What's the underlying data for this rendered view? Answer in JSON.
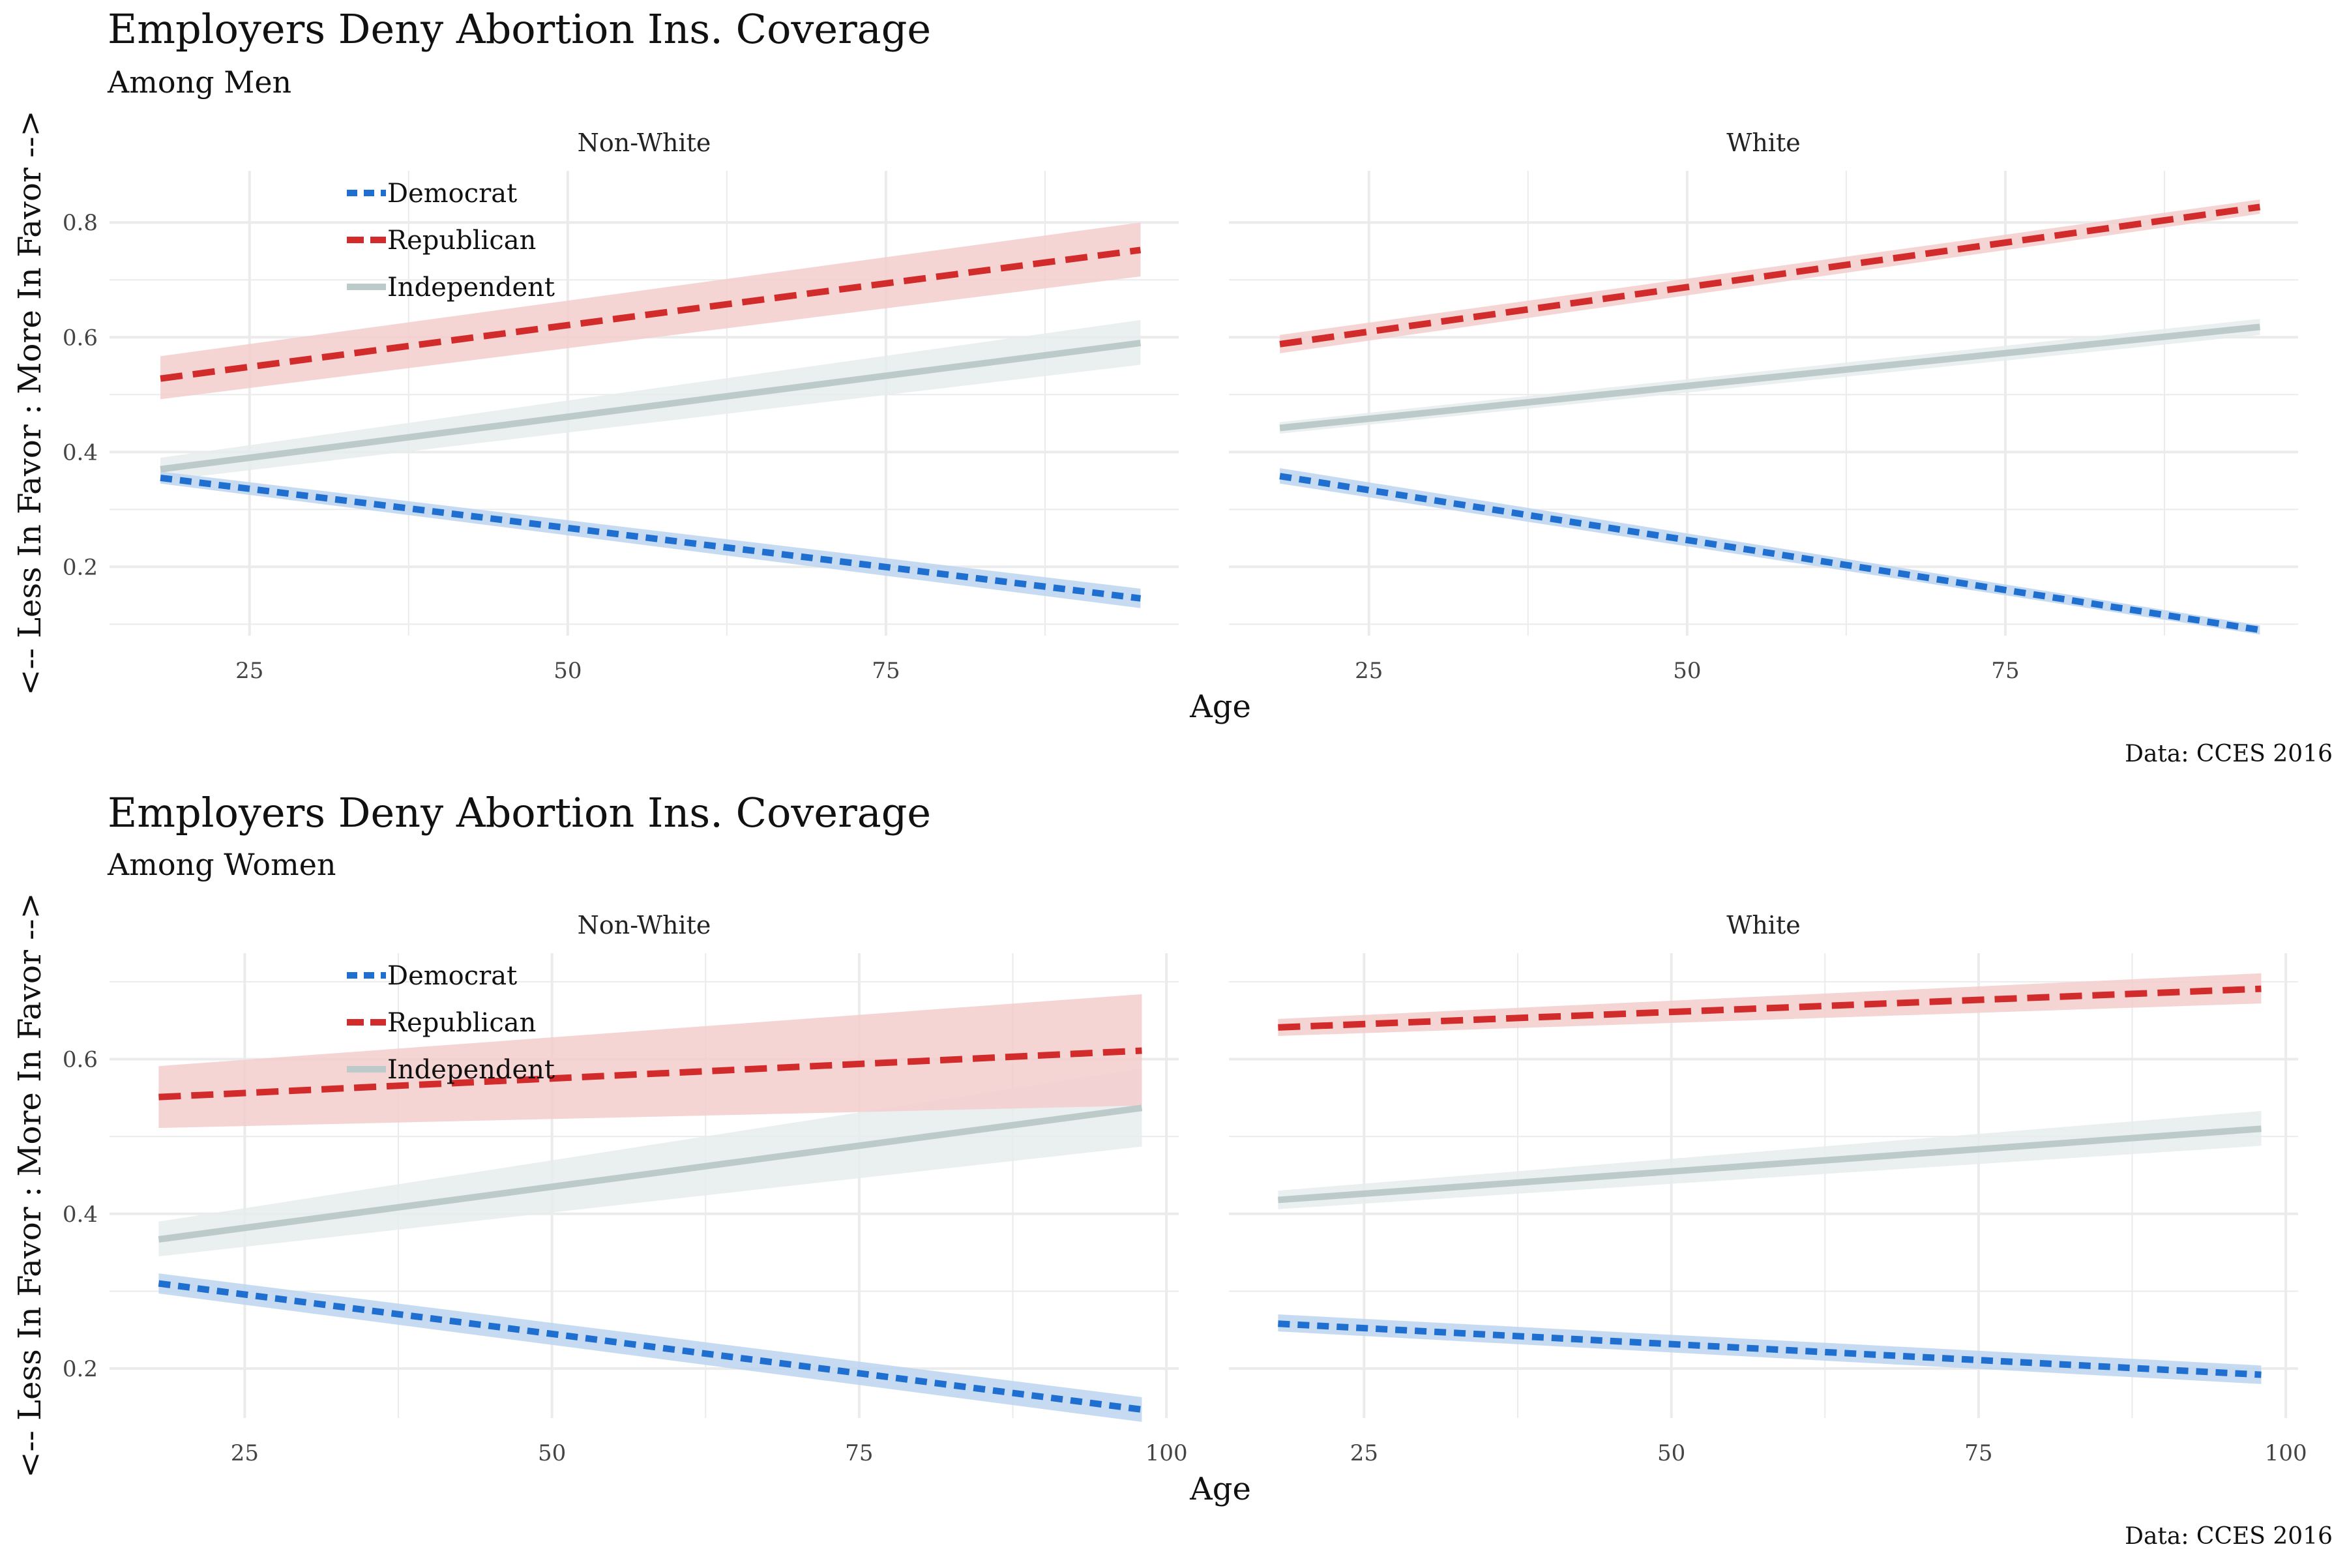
{
  "palette": {
    "Democrat": "#1f6fd1",
    "Republican": "#d22b2b",
    "Independent": "#bccaca",
    "Democrat_band": "#bcd5ef",
    "Republican_band": "#f3cccc",
    "Independent_band": "#e6ecec",
    "grid": "#ebebeb"
  },
  "chart_data": [
    {
      "type": "line",
      "title": "Employers Deny Abortion Ins. Coverage",
      "subtitle": "Among Men",
      "xlabel": "Age",
      "ylabel": "<-- Less In Favor : More In Favor -->",
      "caption": "Data: CCES 2016",
      "legend": {
        "placement": "top-left-inside-first-panel",
        "entries": [
          "Democrat",
          "Republican",
          "Independent"
        ]
      },
      "ylim": [
        0.08,
        0.89
      ],
      "yticks": [
        0.2,
        0.4,
        0.6,
        0.8
      ],
      "yticklabels": [
        "0.2",
        "0.4",
        "0.6",
        "0.8"
      ],
      "grid": true,
      "panels": [
        {
          "strip": "Non-White",
          "xlim": [
            14,
            98
          ],
          "xticks": [
            25,
            50,
            75
          ],
          "xticklabels": [
            "25",
            "50",
            "75"
          ],
          "series": [
            {
              "name": "Democrat",
              "x": [
                18,
                95
              ],
              "y": [
                0.355,
                0.145
              ],
              "lower": [
                0.345,
                0.128
              ],
              "upper": [
                0.366,
                0.162
              ]
            },
            {
              "name": "Republican",
              "x": [
                18,
                95
              ],
              "y": [
                0.528,
                0.752
              ],
              "lower": [
                0.492,
                0.706
              ],
              "upper": [
                0.567,
                0.8
              ]
            },
            {
              "name": "Independent",
              "x": [
                18,
                95
              ],
              "y": [
                0.37,
                0.59
              ],
              "lower": [
                0.35,
                0.552
              ],
              "upper": [
                0.39,
                0.63
              ]
            }
          ]
        },
        {
          "strip": "White",
          "xlim": [
            14,
            98
          ],
          "xticks": [
            25,
            50,
            75
          ],
          "xticklabels": [
            "25",
            "50",
            "75"
          ],
          "series": [
            {
              "name": "Democrat",
              "x": [
                18,
                95
              ],
              "y": [
                0.358,
                0.09
              ],
              "lower": [
                0.345,
                0.082
              ],
              "upper": [
                0.372,
                0.098
              ]
            },
            {
              "name": "Republican",
              "x": [
                18,
                95
              ],
              "y": [
                0.588,
                0.827
              ],
              "lower": [
                0.572,
                0.815
              ],
              "upper": [
                0.604,
                0.84
              ]
            },
            {
              "name": "Independent",
              "x": [
                18,
                95
              ],
              "y": [
                0.442,
                0.618
              ],
              "lower": [
                0.432,
                0.604
              ],
              "upper": [
                0.452,
                0.632
              ]
            }
          ]
        }
      ]
    },
    {
      "type": "line",
      "title": "Employers Deny Abortion Ins. Coverage",
      "subtitle": "Among Women",
      "xlabel": "Age",
      "ylabel": "<-- Less In Favor : More In Favor -->",
      "caption": "Data: CCES 2016",
      "legend": {
        "placement": "top-left-inside-first-panel",
        "entries": [
          "Democrat",
          "Republican",
          "Independent"
        ]
      },
      "ylim": [
        0.136,
        0.737
      ],
      "yticks": [
        0.2,
        0.4,
        0.6
      ],
      "yticklabels": [
        "0.2",
        "0.4",
        "0.6"
      ],
      "grid": true,
      "panels": [
        {
          "strip": "Non-White",
          "xlim": [
            14,
            101
          ],
          "xticks": [
            25,
            50,
            75,
            100
          ],
          "xticklabels": [
            "25",
            "50",
            "75",
            "100"
          ],
          "series": [
            {
              "name": "Democrat",
              "x": [
                18,
                98
              ],
              "y": [
                0.31,
                0.147
              ],
              "lower": [
                0.297,
                0.131
              ],
              "upper": [
                0.323,
                0.163
              ]
            },
            {
              "name": "Republican",
              "x": [
                18,
                98
              ],
              "y": [
                0.551,
                0.611
              ],
              "lower": [
                0.511,
                0.54
              ],
              "upper": [
                0.591,
                0.684
              ]
            },
            {
              "name": "Independent",
              "x": [
                18,
                98
              ],
              "y": [
                0.367,
                0.537
              ],
              "lower": [
                0.345,
                0.487
              ],
              "upper": [
                0.39,
                0.588
              ]
            }
          ]
        },
        {
          "strip": "White",
          "xlim": [
            14,
            101
          ],
          "xticks": [
            25,
            50,
            75,
            100
          ],
          "xticklabels": [
            "25",
            "50",
            "75",
            "100"
          ],
          "series": [
            {
              "name": "Democrat",
              "x": [
                18,
                98
              ],
              "y": [
                0.258,
                0.192
              ],
              "lower": [
                0.248,
                0.18
              ],
              "upper": [
                0.27,
                0.204
              ]
            },
            {
              "name": "Republican",
              "x": [
                18,
                98
              ],
              "y": [
                0.641,
                0.691
              ],
              "lower": [
                0.63,
                0.672
              ],
              "upper": [
                0.652,
                0.711
              ]
            },
            {
              "name": "Independent",
              "x": [
                18,
                98
              ],
              "y": [
                0.418,
                0.51
              ],
              "lower": [
                0.406,
                0.488
              ],
              "upper": [
                0.43,
                0.533
              ]
            }
          ]
        }
      ]
    }
  ]
}
